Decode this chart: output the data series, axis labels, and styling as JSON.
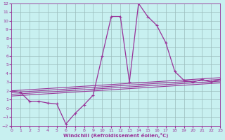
{
  "xlabel": "Windchill (Refroidissement éolien,°C)",
  "bg_color": "#c8f0f0",
  "grid_color": "#9bbcbc",
  "line_color": "#993399",
  "xlim": [
    0,
    23
  ],
  "ylim": [
    -2,
    12
  ],
  "xticks": [
    0,
    1,
    2,
    3,
    4,
    5,
    6,
    7,
    8,
    9,
    10,
    11,
    12,
    13,
    14,
    15,
    16,
    17,
    18,
    19,
    20,
    21,
    22,
    23
  ],
  "yticks": [
    -2,
    -1,
    0,
    1,
    2,
    3,
    4,
    5,
    6,
    7,
    8,
    9,
    10,
    11,
    12
  ],
  "main_x": [
    0,
    1,
    2,
    3,
    4,
    5,
    6,
    7,
    8,
    9,
    10,
    11,
    12,
    13,
    14,
    15,
    16,
    17,
    18,
    19,
    20,
    21,
    22,
    23
  ],
  "main_y": [
    2.0,
    1.8,
    0.8,
    0.8,
    0.6,
    0.5,
    -1.8,
    -0.6,
    0.4,
    1.5,
    6.0,
    10.5,
    10.5,
    3.0,
    12.0,
    10.5,
    9.5,
    7.5,
    4.2,
    3.2,
    3.0,
    3.3,
    3.0,
    3.3
  ],
  "line1_x": [
    0,
    23
  ],
  "line1_y": [
    2.0,
    3.5
  ],
  "line2_x": [
    0,
    23
  ],
  "line2_y": [
    1.8,
    3.3
  ],
  "line3_x": [
    0,
    23
  ],
  "line3_y": [
    1.6,
    3.1
  ],
  "line4_x": [
    0,
    23
  ],
  "line4_y": [
    1.4,
    2.9
  ]
}
